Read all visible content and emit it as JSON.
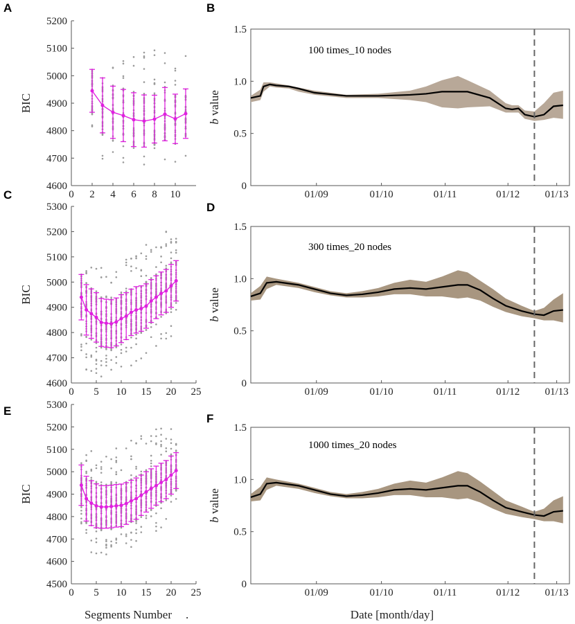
{
  "figure": {
    "shared_left_xlabel": "Segments Number",
    "shared_left_xlabel_suffix": ".",
    "shared_right_xlabel": "Date [month/day]"
  },
  "chart_data": [
    {
      "panel": "A",
      "type": "scatter",
      "ylabel": "BIC",
      "xlabel": "",
      "xlim": [
        0,
        12
      ],
      "xticks": [
        0,
        2,
        4,
        6,
        8,
        10
      ],
      "ylim": [
        4600,
        5200
      ],
      "yticks": [
        4600,
        4700,
        4800,
        4900,
        5000,
        5100,
        5200
      ],
      "mean_color": "#e020e0",
      "scatter_color": "#9a9a9a",
      "series": [
        {
          "name": "BIC mean ± std",
          "x": [
            2,
            3,
            4,
            5,
            6,
            7,
            8,
            9,
            10,
            11
          ],
          "mean": [
            4945,
            4892,
            4867,
            4855,
            4840,
            4835,
            4842,
            4860,
            4843,
            4862
          ],
          "std": [
            78,
            100,
            95,
            95,
            98,
            95,
            87,
            97,
            90,
            90
          ],
          "scatter_min": [
            4790,
            4670,
            4680,
            4665,
            4650,
            4660,
            4680,
            4665,
            4680,
            4690
          ],
          "scatter_max": [
            5040,
            5040,
            5045,
            5060,
            5070,
            5100,
            5100,
            5120,
            5050,
            5085
          ]
        }
      ]
    },
    {
      "panel": "B",
      "type": "area",
      "ylabel_italic": "b",
      "ylabel_rest": " value",
      "xlabel": "",
      "annotation": "100 times_10 nodes",
      "ylim": [
        0,
        1.5
      ],
      "yticks": [
        0,
        0.5,
        1.0,
        1.5
      ],
      "xlim": [
        0,
        1
      ],
      "xticks": [
        "01/09",
        "01/10",
        "01/11",
        "01/12",
        "01/13"
      ],
      "xtick_pos": [
        0.206,
        0.41,
        0.61,
        0.807,
        0.96
      ],
      "event_line_x": 0.89,
      "band_color": "#b8a898",
      "line_color": "#000000",
      "x": [
        0,
        0.03,
        0.04,
        0.06,
        0.08,
        0.12,
        0.15,
        0.2,
        0.3,
        0.4,
        0.5,
        0.55,
        0.6,
        0.65,
        0.68,
        0.75,
        0.8,
        0.82,
        0.84,
        0.86,
        0.89,
        0.92,
        0.95,
        0.98
      ],
      "mean": [
        0.84,
        0.86,
        0.95,
        0.97,
        0.96,
        0.95,
        0.93,
        0.89,
        0.86,
        0.86,
        0.87,
        0.88,
        0.9,
        0.9,
        0.9,
        0.84,
        0.74,
        0.73,
        0.74,
        0.68,
        0.66,
        0.68,
        0.76,
        0.77
      ],
      "upper": [
        0.86,
        0.92,
        0.99,
        0.99,
        0.98,
        0.96,
        0.94,
        0.91,
        0.87,
        0.88,
        0.91,
        0.95,
        1.01,
        1.05,
        1.01,
        0.91,
        0.79,
        0.77,
        0.77,
        0.72,
        0.71,
        0.79,
        0.89,
        0.91
      ],
      "lower": [
        0.8,
        0.82,
        0.9,
        0.95,
        0.94,
        0.93,
        0.9,
        0.87,
        0.84,
        0.84,
        0.82,
        0.8,
        0.75,
        0.74,
        0.75,
        0.76,
        0.7,
        0.7,
        0.7,
        0.64,
        0.62,
        0.63,
        0.65,
        0.64
      ]
    },
    {
      "panel": "C",
      "type": "scatter",
      "ylabel": "BIC",
      "xlabel": "",
      "xlim": [
        0,
        25
      ],
      "xticks": [
        0,
        5,
        10,
        15,
        20,
        25
      ],
      "ylim": [
        4600,
        5300
      ],
      "yticks": [
        4600,
        4700,
        4800,
        4900,
        5000,
        5100,
        5200,
        5300
      ],
      "mean_color": "#e020e0",
      "scatter_color": "#9a9a9a",
      "series": [
        {
          "name": "BIC mean ± std",
          "x": [
            2,
            3,
            4,
            5,
            6,
            7,
            8,
            9,
            10,
            11,
            12,
            13,
            14,
            15,
            16,
            17,
            18,
            19,
            20,
            21
          ],
          "mean": [
            4940,
            4890,
            4875,
            4860,
            4840,
            4837,
            4835,
            4842,
            4855,
            4865,
            4880,
            4890,
            4895,
            4905,
            4925,
            4940,
            4955,
            4965,
            4985,
            5005
          ],
          "std": [
            90,
            100,
            98,
            98,
            95,
            95,
            95,
            95,
            95,
            93,
            92,
            92,
            90,
            88,
            85,
            85,
            85,
            85,
            85,
            80
          ],
          "scatter_min": [
            4720,
            4650,
            4640,
            4630,
            4620,
            4615,
            4640,
            4640,
            4650,
            4660,
            4660,
            4670,
            4680,
            4700,
            4700,
            4710,
            4720,
            4750,
            4780,
            4850
          ],
          "scatter_max": [
            5030,
            5070,
            5060,
            5060,
            5060,
            5050,
            5070,
            5080,
            5080,
            5090,
            5100,
            5110,
            5120,
            5150,
            5130,
            5150,
            5180,
            5200,
            5200,
            5200
          ]
        }
      ]
    },
    {
      "panel": "D",
      "type": "area",
      "ylabel_italic": "b",
      "ylabel_rest": " value",
      "xlabel": "",
      "annotation": "300 times_20 nodes",
      "ylim": [
        0,
        1.5
      ],
      "yticks": [
        0,
        0.5,
        1.0,
        1.5
      ],
      "xlim": [
        0,
        1
      ],
      "xticks": [
        "01/09",
        "01/10",
        "01/11",
        "01/12",
        "01/13"
      ],
      "xtick_pos": [
        0.206,
        0.41,
        0.61,
        0.807,
        0.96
      ],
      "event_line_x": 0.89,
      "band_color": "#a89680",
      "line_color": "#000000",
      "x": [
        0,
        0.03,
        0.05,
        0.08,
        0.15,
        0.2,
        0.25,
        0.3,
        0.35,
        0.4,
        0.45,
        0.5,
        0.55,
        0.6,
        0.65,
        0.68,
        0.72,
        0.76,
        0.8,
        0.85,
        0.89,
        0.92,
        0.95,
        0.98
      ],
      "mean": [
        0.83,
        0.86,
        0.96,
        0.97,
        0.94,
        0.9,
        0.86,
        0.84,
        0.85,
        0.87,
        0.9,
        0.91,
        0.9,
        0.92,
        0.94,
        0.94,
        0.89,
        0.81,
        0.74,
        0.69,
        0.66,
        0.65,
        0.69,
        0.7
      ],
      "upper": [
        0.86,
        0.93,
        1.02,
        1.0,
        0.96,
        0.92,
        0.88,
        0.86,
        0.88,
        0.91,
        0.96,
        0.99,
        0.97,
        1.02,
        1.08,
        1.06,
        0.98,
        0.9,
        0.81,
        0.74,
        0.69,
        0.72,
        0.8,
        0.86
      ],
      "lower": [
        0.79,
        0.8,
        0.9,
        0.94,
        0.91,
        0.87,
        0.84,
        0.82,
        0.82,
        0.83,
        0.85,
        0.85,
        0.83,
        0.83,
        0.81,
        0.82,
        0.79,
        0.73,
        0.68,
        0.64,
        0.62,
        0.6,
        0.6,
        0.58
      ]
    },
    {
      "panel": "E",
      "type": "scatter",
      "ylabel": "BIC",
      "xlabel": "",
      "xlim": [
        0,
        25
      ],
      "xticks": [
        0,
        5,
        10,
        15,
        20,
        25
      ],
      "ylim": [
        4500,
        5300
      ],
      "yticks": [
        4500,
        4600,
        4700,
        4800,
        4900,
        5000,
        5100,
        5200,
        5300
      ],
      "mean_color": "#e020e0",
      "scatter_color": "#9a9a9a",
      "series": [
        {
          "name": "BIC mean ± std",
          "x": [
            2,
            3,
            4,
            5,
            6,
            7,
            8,
            9,
            10,
            11,
            12,
            13,
            14,
            15,
            16,
            17,
            18,
            19,
            20,
            21
          ],
          "mean": [
            4940,
            4880,
            4860,
            4848,
            4843,
            4843,
            4845,
            4848,
            4850,
            4858,
            4870,
            4880,
            4895,
            4910,
            4925,
            4938,
            4952,
            4965,
            4985,
            5005
          ],
          "std": [
            90,
            100,
            100,
            98,
            95,
            95,
            95,
            95,
            95,
            93,
            92,
            92,
            90,
            90,
            88,
            87,
            86,
            85,
            85,
            80
          ],
          "scatter_min": [
            4760,
            4650,
            4625,
            4615,
            4620,
            4620,
            4630,
            4640,
            4650,
            4660,
            4660,
            4680,
            4690,
            4700,
            4710,
            4730,
            4740,
            4760,
            4780,
            4800
          ],
          "scatter_max": [
            5080,
            5080,
            5100,
            5080,
            5090,
            5080,
            5100,
            5110,
            5120,
            5130,
            5140,
            5150,
            5160,
            5160,
            5190,
            5190,
            5200,
            5200,
            5210,
            5220
          ]
        }
      ]
    },
    {
      "panel": "F",
      "type": "area",
      "ylabel_italic": "b",
      "ylabel_rest": " value",
      "xlabel": "",
      "annotation": "1000 times_20 nodes",
      "ylim": [
        0,
        1.5
      ],
      "yticks": [
        0,
        0.5,
        1.0,
        1.5
      ],
      "xlim": [
        0,
        1
      ],
      "xticks": [
        "01/09",
        "01/10",
        "01/11",
        "01/12",
        "01/13"
      ],
      "xtick_pos": [
        0.206,
        0.41,
        0.61,
        0.807,
        0.96
      ],
      "event_line_x": 0.89,
      "band_color": "#a89680",
      "line_color": "#000000",
      "x": [
        0,
        0.03,
        0.05,
        0.08,
        0.15,
        0.2,
        0.25,
        0.3,
        0.35,
        0.4,
        0.45,
        0.5,
        0.55,
        0.6,
        0.65,
        0.68,
        0.72,
        0.76,
        0.8,
        0.85,
        0.89,
        0.92,
        0.95,
        0.98
      ],
      "mean": [
        0.83,
        0.86,
        0.96,
        0.97,
        0.94,
        0.9,
        0.86,
        0.84,
        0.85,
        0.87,
        0.9,
        0.91,
        0.9,
        0.92,
        0.94,
        0.94,
        0.88,
        0.8,
        0.73,
        0.69,
        0.66,
        0.65,
        0.69,
        0.7
      ],
      "upper": [
        0.86,
        0.93,
        1.02,
        1.0,
        0.96,
        0.92,
        0.88,
        0.86,
        0.88,
        0.91,
        0.96,
        0.99,
        0.97,
        1.02,
        1.08,
        1.06,
        0.98,
        0.89,
        0.8,
        0.74,
        0.69,
        0.72,
        0.8,
        0.84
      ],
      "lower": [
        0.79,
        0.8,
        0.9,
        0.94,
        0.91,
        0.87,
        0.84,
        0.82,
        0.82,
        0.83,
        0.85,
        0.85,
        0.83,
        0.83,
        0.81,
        0.82,
        0.78,
        0.72,
        0.67,
        0.64,
        0.62,
        0.6,
        0.6,
        0.58
      ]
    }
  ]
}
